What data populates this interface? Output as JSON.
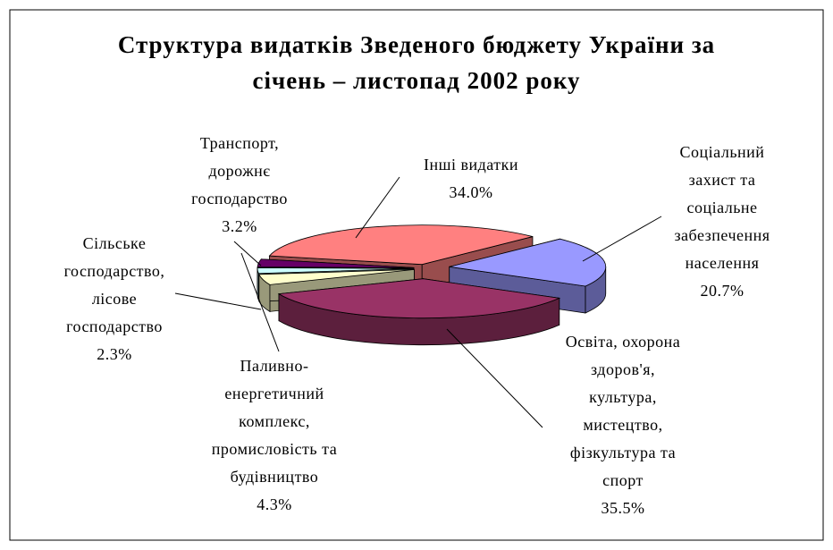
{
  "chart_data": {
    "type": "pie3d",
    "title": "Структура видатків Зведеного бюджету України за січень – листопад 2002 року",
    "categories": [
      "Соціальний захист та соціальне забезпечення населення",
      "Освіта, охорона здоров'я, культура, мистецтво, фізкультура та спорт",
      "Паливно-енергетичний комплекс, промисловість та будівництво",
      "Сільське господарство, лісове господарство",
      "Транспорт, дорожнє господарство",
      "Інші видатки"
    ],
    "values": [
      20.7,
      35.5,
      4.3,
      2.3,
      3.2,
      34.0
    ],
    "value_labels": [
      "20.7%",
      "35.5%",
      "4.3%",
      "2.3%",
      "3.2%",
      "34.0%"
    ],
    "colors": [
      "#9999ff",
      "#993366",
      "#ffffcc",
      "#ccffff",
      "#660066",
      "#ff8080"
    ]
  }
}
